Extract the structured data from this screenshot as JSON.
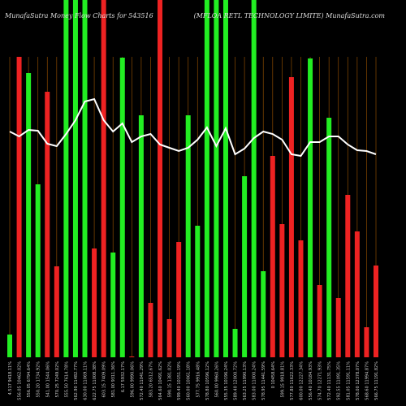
{
  "chart_data": {
    "type": "bar",
    "title": "MunafaSutra  Money Flow  Charts for 543516",
    "subtitle": "(MFLOA RETL TECHNOLOGY LIMITE) MunafaSutra.com",
    "categories": [
      "4.517 9418.11%",
      "556.05 10462.02%",
      "556.05 6794.64%",
      "550.20 1734.92%",
      "541.00 1544.06%",
      "570.25 7249.02%",
      "555.50 7614.78%",
      "562.90 11482.77%",
      "630.00 11069.11%",
      "622.75 11008.38%",
      "603.15 7409.09%",
      "581.00 9311.36%",
      "6.17 5932.17%",
      "596.00 9990.06%",
      "572.40 11041.29%",
      "583.20 6512.67%",
      "564.60 10491.62%",
      "590.15 1381.02%",
      "599.40 10151.19%",
      "560.00 10061.18%",
      "577.75 9916.48%",
      "578.80 10596.12%",
      "560.00 9960.26%",
      "555.35 10196.24%",
      "589.40 12000.72%",
      "563.25 11990.13%",
      "583.00 11000.24%",
      "578.95 11441.59%",
      "0 10458.64%",
      "599.15 9918.81%",
      "577.80 11622.33%",
      "600.00 12227.34%",
      "556.40 10184.93%",
      "574.70 12271.93%",
      "572.40 11131.75%",
      "592.55 11091.35%",
      "581.05 11591.11%",
      "578.00 12378.07%",
      "568.60 11994.87%",
      "566.75 11191.82%"
    ],
    "series": [
      {
        "values": [
          28,
          370,
          350,
          213,
          327,
          112,
          440,
          440,
          440,
          134,
          440,
          129,
          369,
          1,
          298,
          67,
          440,
          47,
          142,
          298,
          162,
          440,
          440,
          440,
          35,
          223,
          440,
          106,
          248,
          164,
          345,
          144,
          368,
          89,
          295,
          73,
          200,
          155,
          37,
          113
        ],
        "colors": [
          "#22ee22",
          "#ee2222",
          "#22ee22",
          "#22ee22",
          "#ee2222",
          "#ee2222",
          "#22ee22",
          "#22ee22",
          "#22ee22",
          "#ee2222",
          "#ee2222",
          "#22ee22",
          "#22ee22",
          "#ee2222",
          "#22ee22",
          "#ee2222",
          "#ee2222",
          "#ee2222",
          "#ee2222",
          "#22ee22",
          "#22ee22",
          "#22ee22",
          "#22ee22",
          "#22ee22",
          "#22ee22",
          "#22ee22",
          "#22ee22",
          "#22ee22",
          "#ee2222",
          "#ee2222",
          "#ee2222",
          "#ee2222",
          "#22ee22",
          "#ee2222",
          "#22ee22",
          "#ee2222",
          "#ee2222",
          "#ee2222",
          "#ee2222",
          "#ee2222"
        ]
      },
      {
        "type": "line",
        "color": "#ffffff",
        "values": [
          278,
          272,
          280,
          279,
          263,
          260,
          275,
          292,
          315,
          318,
          292,
          278,
          288,
          265,
          272,
          275,
          262,
          258,
          254,
          258,
          268,
          283,
          260,
          282,
          250,
          257,
          270,
          278,
          275,
          268,
          250,
          248,
          265,
          265,
          272,
          272,
          262,
          255,
          254,
          250
        ]
      }
    ],
    "ylim": [
      0,
      440
    ]
  }
}
